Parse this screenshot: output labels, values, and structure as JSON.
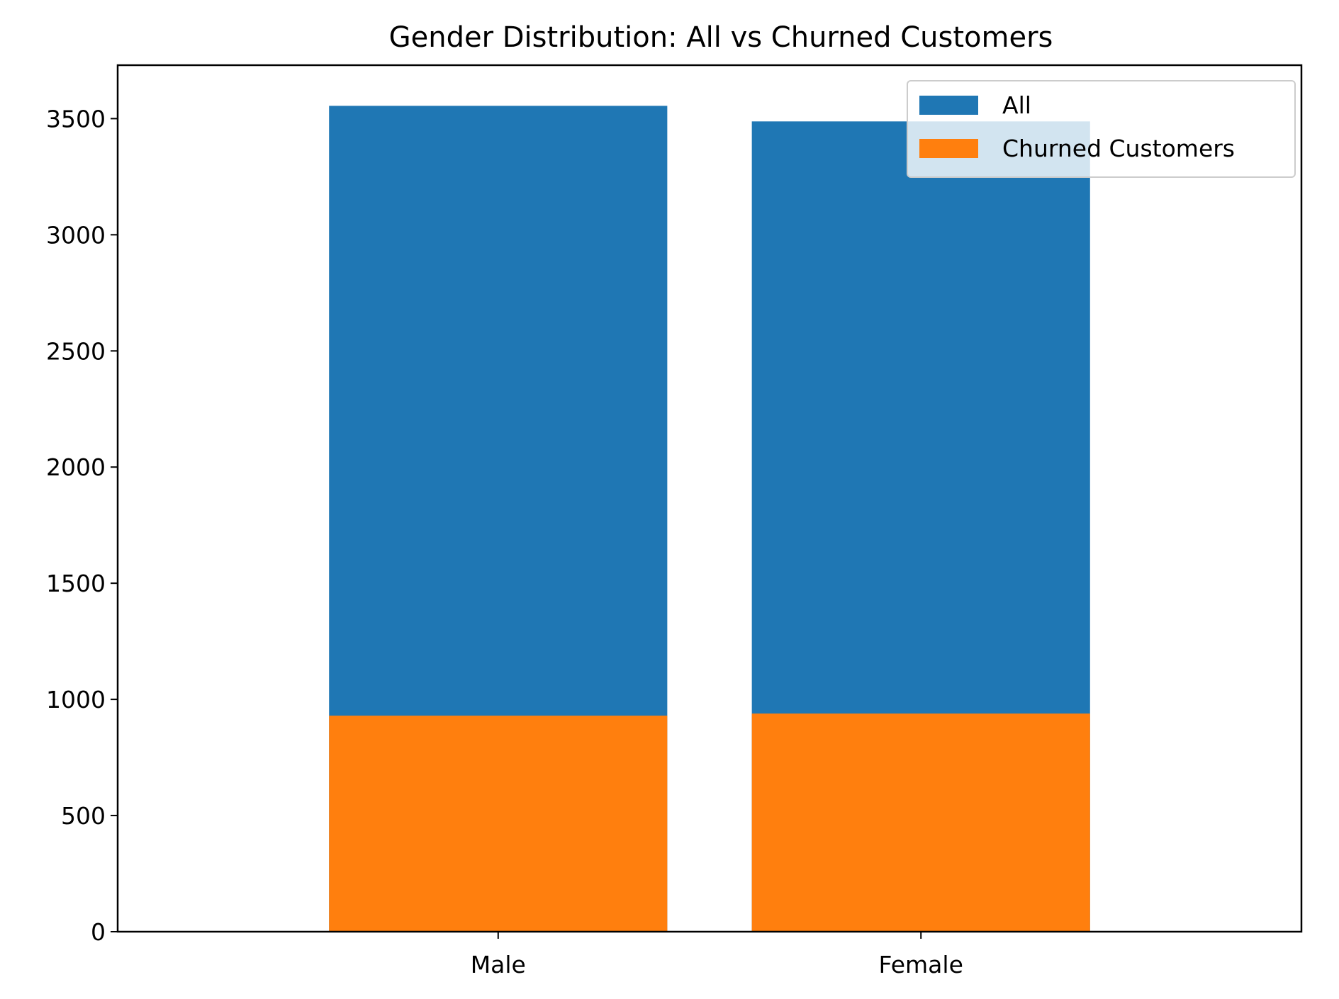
{
  "chart_data": {
    "type": "bar",
    "title": "Gender Distribution: All vs Churned Customers",
    "xlabel": "",
    "ylabel": "",
    "categories": [
      "Male",
      "Female"
    ],
    "series": [
      {
        "name": "All",
        "values": [
          3555,
          3488
        ],
        "color": "#1f77b4"
      },
      {
        "name": "Churned Customers",
        "values": [
          930,
          939
        ],
        "color": "#ff7f0e"
      }
    ],
    "ylim": [
      0,
      3730
    ],
    "yticks": [
      0,
      500,
      1000,
      1500,
      2000,
      2500,
      3000,
      3500
    ],
    "grid": false,
    "legend_position": "top-right",
    "overlay": true
  }
}
